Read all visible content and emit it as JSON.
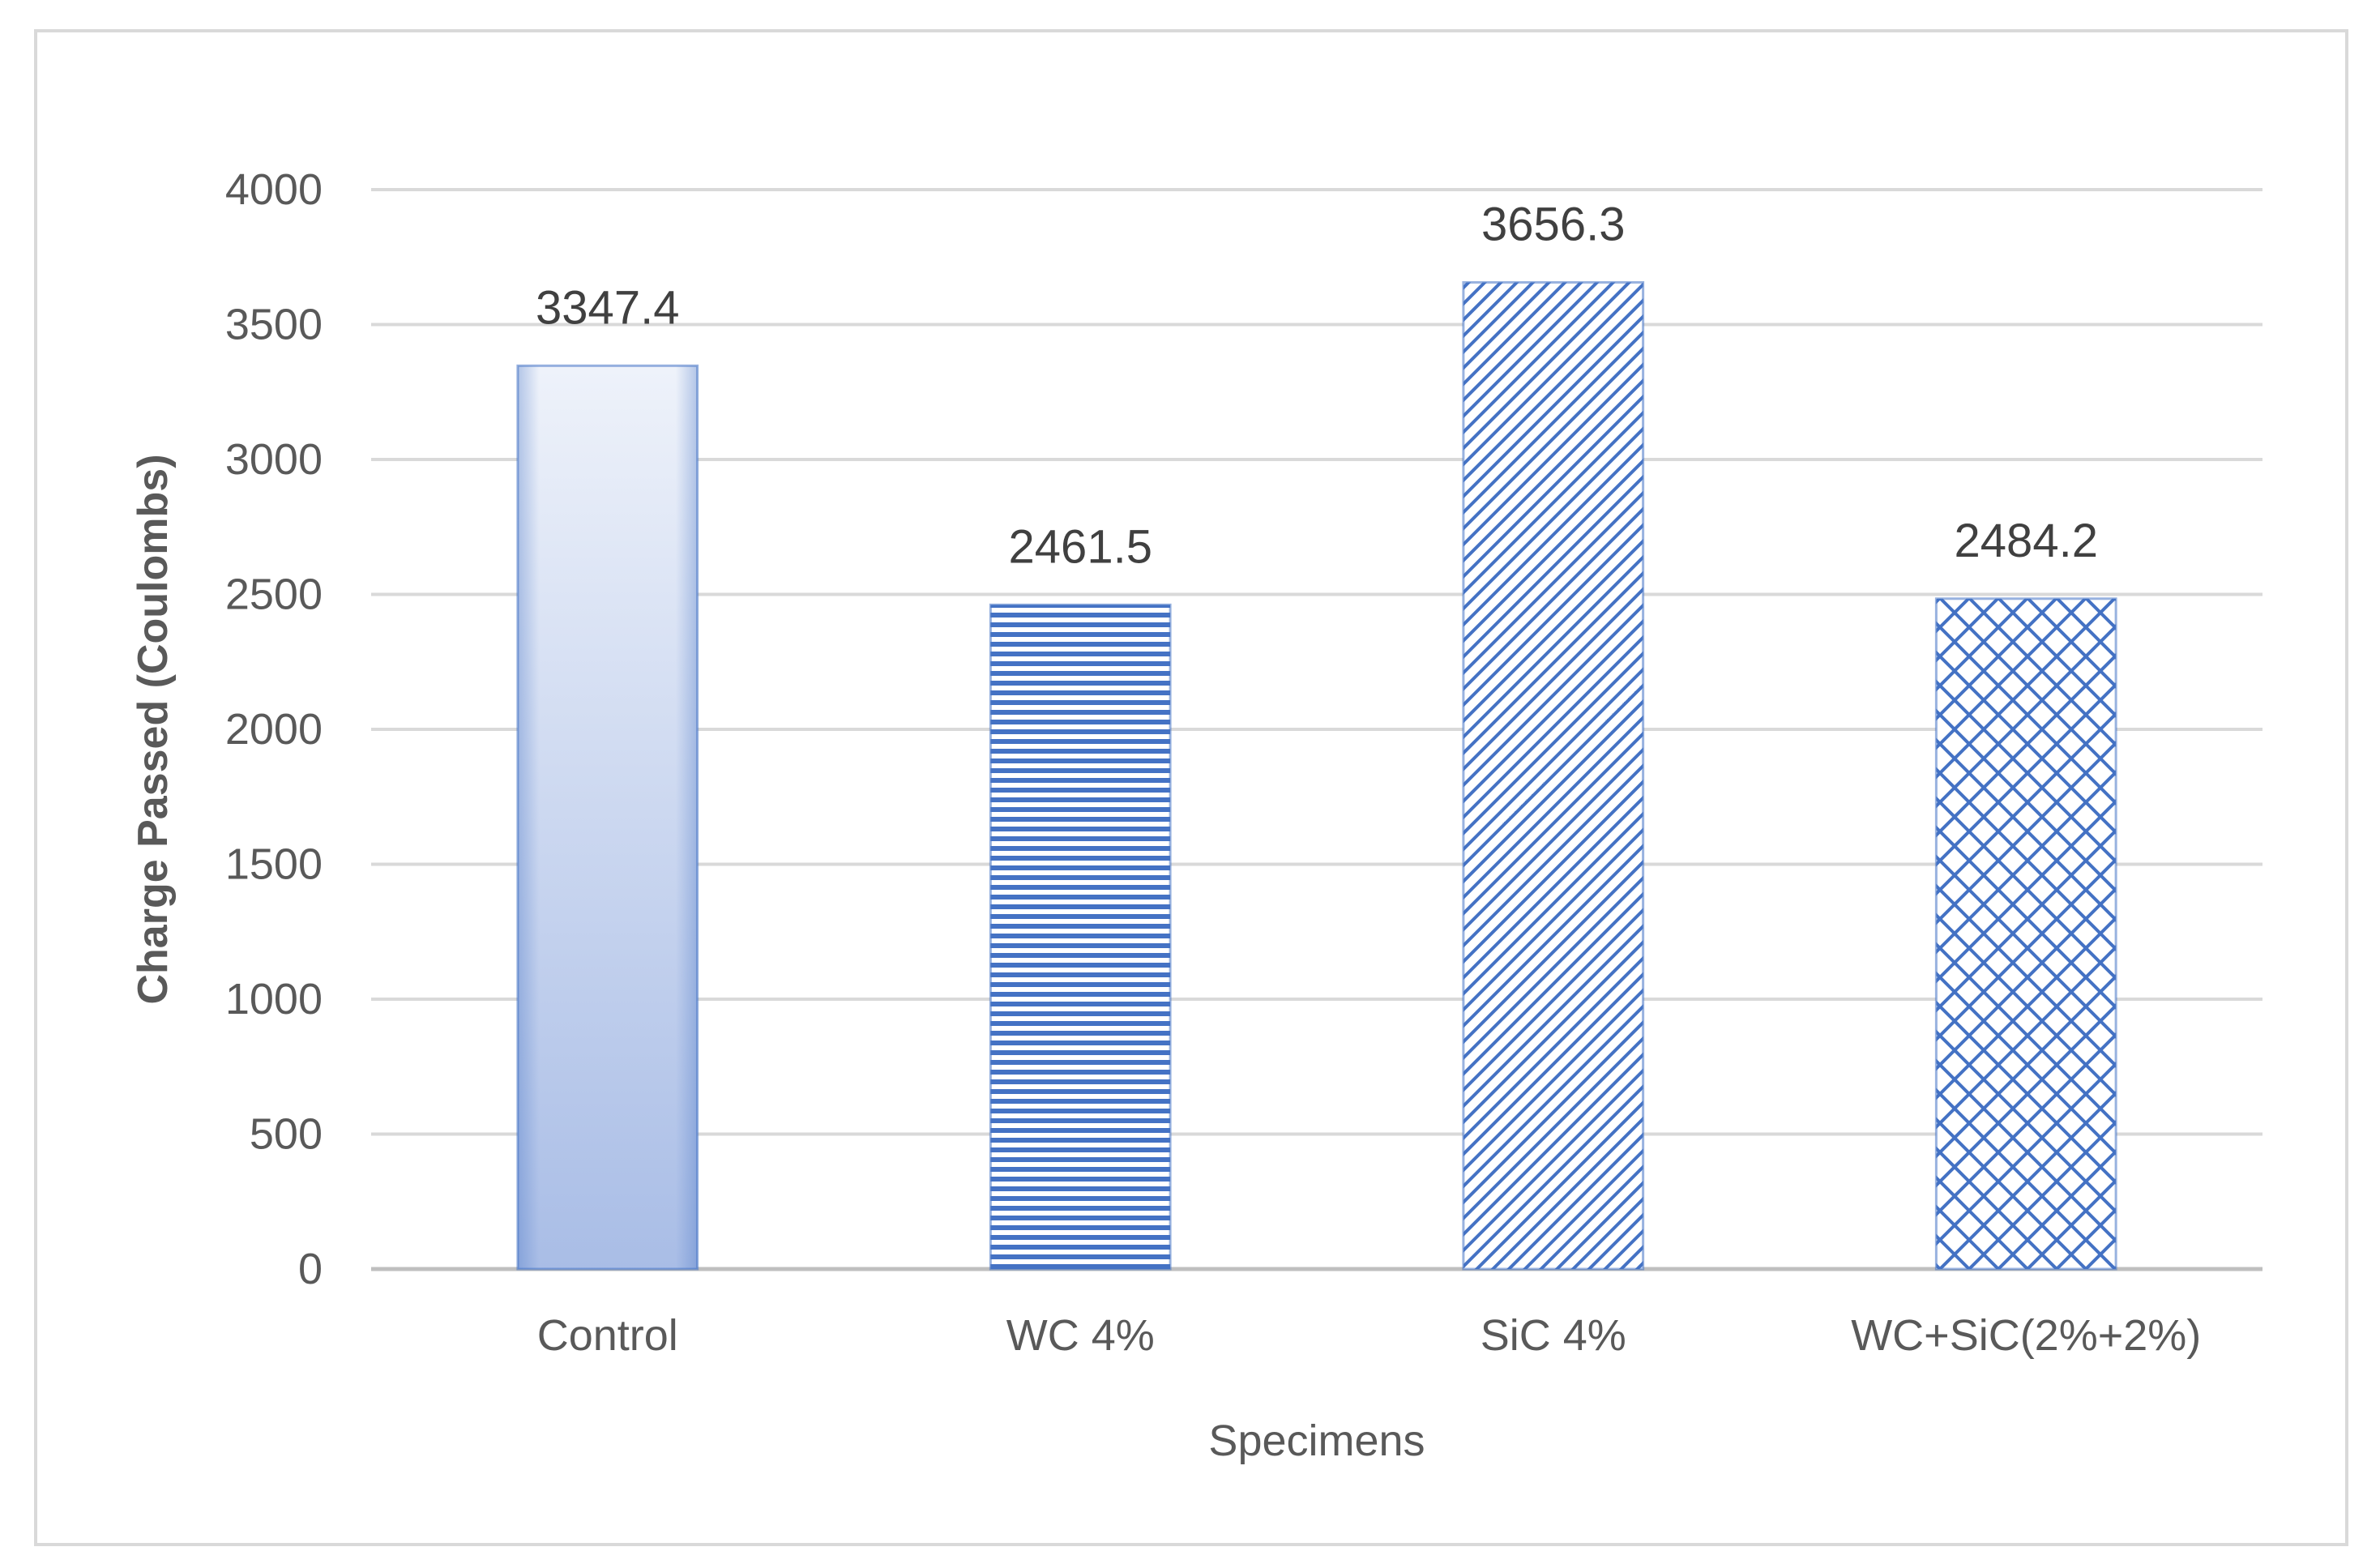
{
  "chart_data": {
    "type": "bar",
    "title": "",
    "xlabel": "Specimens",
    "ylabel": "Charge Passed (Coulombs)",
    "categories": [
      "Control",
      "WC 4%",
      "SiC 4%",
      "WC+SiC(2%+2%)"
    ],
    "values": [
      3347.4,
      2461.5,
      3656.3,
      2484.2
    ],
    "data_labels": [
      "3347.4",
      "2461.5",
      "3656.3",
      "2484.2"
    ],
    "ylim": [
      0,
      4000
    ],
    "yticks": [
      0,
      500,
      1000,
      1500,
      2000,
      2500,
      3000,
      3500,
      4000
    ],
    "grid": true,
    "legend": "none",
    "fills": [
      "gradient",
      "horizontal-stripes",
      "diagonal-hatch",
      "diamond-lattice"
    ],
    "colors": {
      "bar": "#4472c4",
      "bar_light": "#e9eef8",
      "gridline": "#d9d9d9",
      "axis_line": "#bfbfbf",
      "text": "#595959"
    }
  }
}
